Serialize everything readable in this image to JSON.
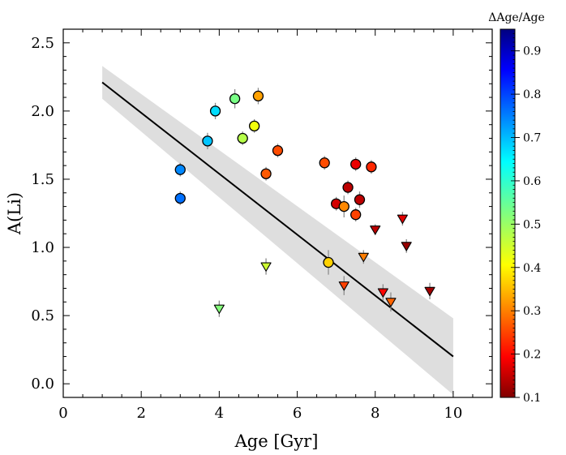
{
  "chart_data": {
    "type": "scatter",
    "title": "",
    "xlabel": "Age [Gyr]",
    "ylabel": "A(Li)",
    "xlim": [
      0,
      11
    ],
    "ylim": [
      -0.1,
      2.6
    ],
    "xticks": [
      0,
      2,
      4,
      6,
      8,
      10
    ],
    "xtick_labels": [
      "0",
      "2",
      "4",
      "6",
      "8",
      "10"
    ],
    "yticks": [
      0.0,
      0.5,
      1.0,
      1.5,
      2.0,
      2.5
    ],
    "ytick_labels": [
      "0.0",
      "0.5",
      "1.0",
      "1.5",
      "2.0",
      "2.5"
    ],
    "grid": false,
    "colorbar": {
      "label": "ΔAge/Age",
      "min": 0.1,
      "max": 0.95,
      "ticks": [
        0.1,
        0.2,
        0.3,
        0.4,
        0.5,
        0.6,
        0.7,
        0.8,
        0.9
      ],
      "tick_labels": [
        "0.1",
        "0.2",
        "0.3",
        "0.4",
        "0.5",
        "0.6",
        "0.7",
        "0.8",
        "0.9"
      ],
      "colormap": "jet_r"
    },
    "fit_line": {
      "x": [
        1,
        10
      ],
      "y": [
        2.21,
        0.2
      ],
      "color": "#000000"
    },
    "confidence_band": {
      "x": [
        1,
        10
      ],
      "upper": [
        2.33,
        0.48
      ],
      "lower": [
        2.09,
        -0.08
      ],
      "color": "#dedede"
    },
    "detections": [
      {
        "x": 3.0,
        "y": 1.57,
        "err": 0.05,
        "c": 0.73
      },
      {
        "x": 3.0,
        "y": 1.36,
        "err": 0.05,
        "c": 0.75
      },
      {
        "x": 3.7,
        "y": 1.78,
        "err": 0.06,
        "c": 0.68
      },
      {
        "x": 3.9,
        "y": 2.0,
        "err": 0.06,
        "c": 0.66
      },
      {
        "x": 4.4,
        "y": 2.09,
        "err": 0.07,
        "c": 0.53
      },
      {
        "x": 4.6,
        "y": 1.8,
        "err": 0.05,
        "c": 0.48
      },
      {
        "x": 4.9,
        "y": 1.89,
        "err": 0.05,
        "c": 0.43
      },
      {
        "x": 5.0,
        "y": 2.11,
        "err": 0.06,
        "c": 0.34
      },
      {
        "x": 5.2,
        "y": 1.54,
        "err": 0.05,
        "c": 0.28
      },
      {
        "x": 5.5,
        "y": 1.71,
        "err": 0.05,
        "c": 0.27
      },
      {
        "x": 6.7,
        "y": 1.62,
        "err": 0.05,
        "c": 0.27
      },
      {
        "x": 6.8,
        "y": 0.89,
        "err": 0.09,
        "c": 0.38
      },
      {
        "x": 7.0,
        "y": 1.32,
        "err": 0.05,
        "c": 0.17
      },
      {
        "x": 7.2,
        "y": 1.3,
        "err": 0.08,
        "c": 0.32
      },
      {
        "x": 7.3,
        "y": 1.44,
        "err": 0.05,
        "c": 0.15
      },
      {
        "x": 7.5,
        "y": 1.61,
        "err": 0.05,
        "c": 0.19
      },
      {
        "x": 7.5,
        "y": 1.24,
        "err": 0.05,
        "c": 0.26
      },
      {
        "x": 7.6,
        "y": 1.35,
        "err": 0.06,
        "c": 0.15
      },
      {
        "x": 7.9,
        "y": 1.59,
        "err": 0.05,
        "c": 0.24
      }
    ],
    "upper_limits": [
      {
        "x": 4.0,
        "y": 0.55,
        "err": 0.06,
        "c": 0.52
      },
      {
        "x": 5.2,
        "y": 0.86,
        "err": 0.06,
        "c": 0.46
      },
      {
        "x": 7.2,
        "y": 0.72,
        "err": 0.07,
        "c": 0.26
      },
      {
        "x": 7.7,
        "y": 0.93,
        "err": 0.05,
        "c": 0.31
      },
      {
        "x": 8.0,
        "y": 1.13,
        "err": 0.04,
        "c": 0.15
      },
      {
        "x": 8.2,
        "y": 0.67,
        "err": 0.06,
        "c": 0.21
      },
      {
        "x": 8.4,
        "y": 0.6,
        "err": 0.07,
        "c": 0.29
      },
      {
        "x": 8.7,
        "y": 1.21,
        "err": 0.05,
        "c": 0.18
      },
      {
        "x": 8.8,
        "y": 1.01,
        "err": 0.05,
        "c": 0.12
      },
      {
        "x": 9.4,
        "y": 0.68,
        "err": 0.06,
        "c": 0.13
      }
    ]
  }
}
